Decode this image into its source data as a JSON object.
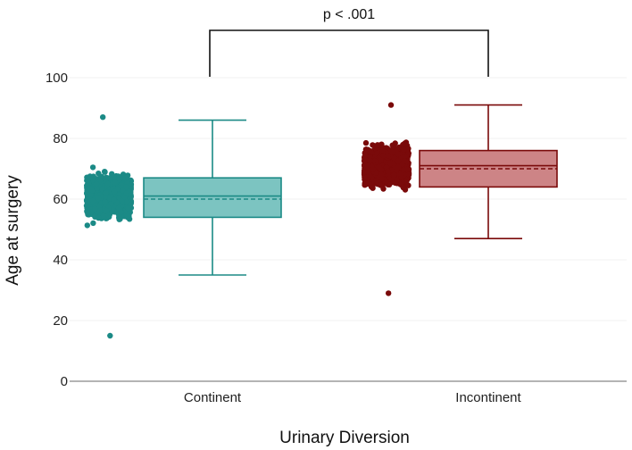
{
  "chart_data": {
    "type": "box",
    "xlabel": "Urinary Diversion",
    "ylabel": "Age at surgery",
    "ylim": [
      0,
      100
    ],
    "yticks": [
      0,
      20,
      40,
      60,
      80,
      100
    ],
    "grid": true,
    "categories": [
      "Continent",
      "Incontinent"
    ],
    "boxes": [
      {
        "category": "Continent",
        "min": 35,
        "q1": 54,
        "median": 61,
        "mean": 60,
        "q3": 67,
        "max": 86,
        "points_range": [
          15,
          87
        ],
        "color": "#1b8a86",
        "fill": "#7cc4c1"
      },
      {
        "category": "Incontinent",
        "min": 47,
        "q1": 64,
        "median": 71,
        "mean": 70,
        "q3": 76,
        "max": 91,
        "points_range": [
          29,
          91
        ],
        "color": "#7a0a0a",
        "fill": "#cd8486"
      }
    ],
    "annotation": {
      "text": "p < .001",
      "between": [
        "Continent",
        "Incontinent"
      ]
    }
  }
}
